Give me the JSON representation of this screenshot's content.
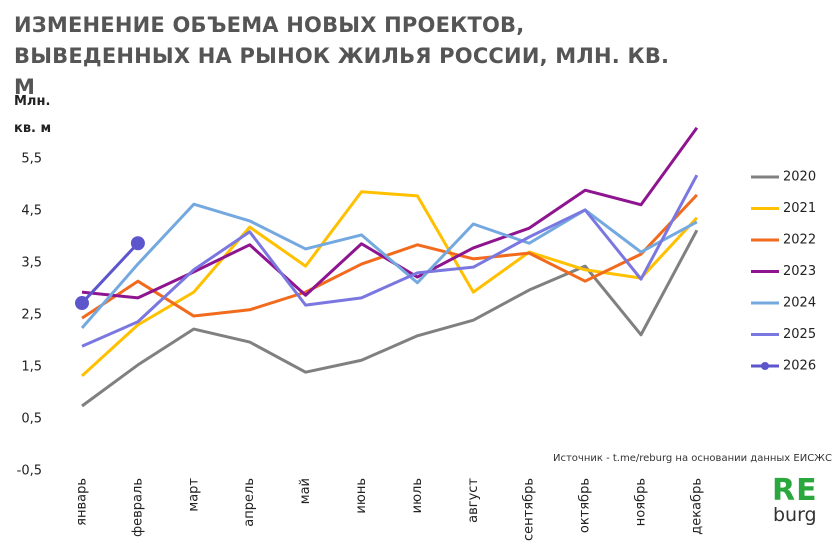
{
  "chart_data": {
    "type": "line",
    "title": "ИЗМЕНЕНИЕ ОБЪЕМА НОВЫХ ПРОЕКТОВ, ВЫВЕДЕННЫХ НА РЫНОК ЖИЛЬЯ РОССИИ, МЛН. КВ. М",
    "y_label": "Млн. кв. м",
    "source": "Источник - t.me/reburg на основании данных ЕИСЖС",
    "logo": {
      "top": "RE",
      "bottom": "burg"
    },
    "categories": [
      "январь",
      "февраль",
      "март",
      "апрель",
      "май",
      "июнь",
      "июль",
      "август",
      "сентябрь",
      "октябрь",
      "ноябрь",
      "декабрь"
    ],
    "ylim": [
      -0.5,
      6.5
    ],
    "yticks": [
      {
        "value": -0.5,
        "label": "-0,5"
      },
      {
        "value": 0.5,
        "label": "0,5"
      },
      {
        "value": 1.5,
        "label": "1,5"
      },
      {
        "value": 2.5,
        "label": "2,5"
      },
      {
        "value": 3.5,
        "label": "3,5"
      },
      {
        "value": 4.5,
        "label": "4,5"
      },
      {
        "value": 5.5,
        "label": "5,5"
      }
    ],
    "grid": false,
    "legend": "right",
    "series": [
      {
        "name": "2020",
        "color": "#808080",
        "values": [
          0.75,
          1.54,
          2.23,
          1.98,
          1.4,
          1.63,
          2.1,
          2.4,
          2.98,
          3.44,
          2.12,
          4.13
        ]
      },
      {
        "name": "2021",
        "color": "#ffc000",
        "values": [
          1.33,
          2.31,
          2.94,
          4.19,
          3.44,
          4.87,
          4.79,
          2.94,
          3.71,
          3.37,
          3.21,
          4.37
        ]
      },
      {
        "name": "2022",
        "color": "#f26b1d",
        "values": [
          2.44,
          3.15,
          2.48,
          2.6,
          2.94,
          3.48,
          3.85,
          3.58,
          3.69,
          3.15,
          3.67,
          4.81
        ]
      },
      {
        "name": "2023",
        "color": "#8e1490",
        "values": [
          2.94,
          2.83,
          3.33,
          3.85,
          2.88,
          3.87,
          3.23,
          3.79,
          4.17,
          4.9,
          4.62,
          6.1
        ]
      },
      {
        "name": "2024",
        "color": "#74a9e0",
        "values": [
          2.25,
          3.48,
          4.63,
          4.31,
          3.77,
          4.04,
          3.12,
          4.25,
          3.88,
          4.52,
          3.71,
          4.29
        ]
      },
      {
        "name": "2025",
        "color": "#7a78e0",
        "values": [
          1.9,
          2.37,
          3.37,
          4.1,
          2.69,
          2.83,
          3.31,
          3.42,
          4.0,
          4.52,
          3.19,
          5.19
        ]
      },
      {
        "name": "2026",
        "color": "#5c55cc",
        "marker": "circle",
        "values": [
          2.73,
          3.88,
          null,
          null,
          null,
          null,
          null,
          null,
          null,
          null,
          null,
          null
        ]
      }
    ]
  }
}
